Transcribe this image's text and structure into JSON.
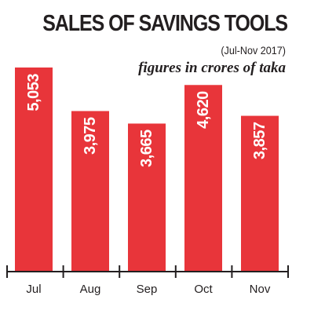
{
  "chart_data": {
    "type": "bar",
    "title": "SALES OF SAVINGS TOOLS",
    "subtitle": "(Jul-Nov 2017)",
    "note": "figures in crores of taka",
    "categories": [
      "Jul",
      "Aug",
      "Sep",
      "Oct",
      "Nov"
    ],
    "values": [
      5053,
      3975,
      3665,
      4620,
      3857
    ],
    "value_labels": [
      "5,053",
      "3,975",
      "3,665",
      "4,620",
      "3,857"
    ],
    "ylim": [
      0,
      5053
    ],
    "grid": false,
    "legend": "none",
    "colors": {
      "bar": "#e8353a",
      "axis": "#231f20",
      "text": "#231f20",
      "bar_text": "#ffffff"
    }
  }
}
